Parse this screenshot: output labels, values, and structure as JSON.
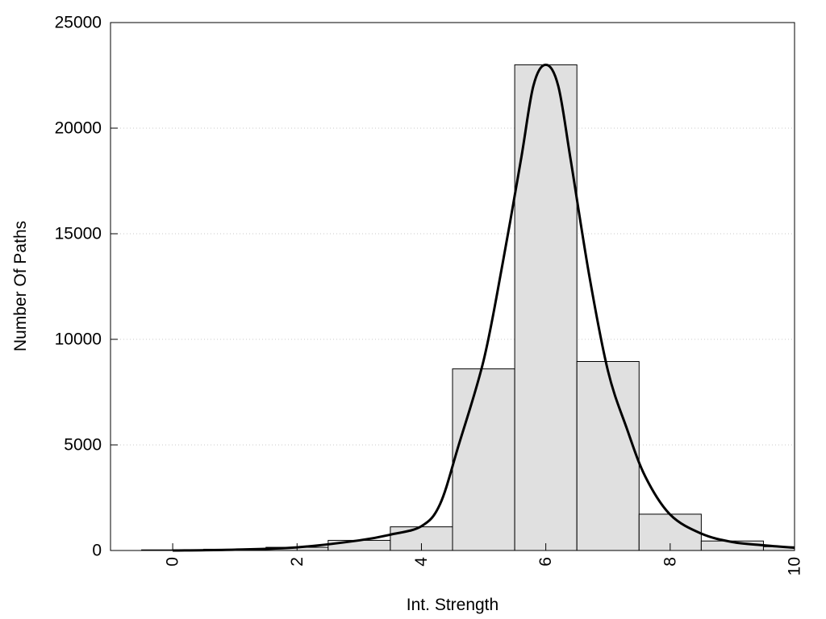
{
  "chart_data": {
    "type": "bar",
    "title": "",
    "xlabel": "Int. Strength",
    "ylabel": "Number Of Paths",
    "xlim": [
      -1,
      10
    ],
    "ylim": [
      0,
      25000
    ],
    "grid": true,
    "legend": "none",
    "x_ticks": [
      0,
      2,
      4,
      6,
      8,
      10
    ],
    "y_ticks": [
      0,
      5000,
      10000,
      15000,
      20000,
      25000
    ],
    "series": [
      {
        "type": "bar",
        "x": [
          0,
          1,
          2,
          3,
          4,
          5,
          6,
          7,
          8,
          9,
          10
        ],
        "values": [
          30,
          60,
          150,
          480,
          1120,
          8600,
          23000,
          8950,
          1720,
          450,
          180
        ]
      },
      {
        "type": "line",
        "x": [
          0,
          1,
          2,
          3,
          3.5,
          4,
          4.3,
          4.6,
          5,
          5.3,
          5.6,
          5.8,
          6,
          6.2,
          6.4,
          6.7,
          7,
          7.3,
          7.6,
          8,
          8.5,
          9,
          9.5,
          10
        ],
        "values": [
          0,
          40,
          150,
          480,
          750,
          1150,
          2200,
          5000,
          9000,
          13500,
          18500,
          22000,
          23000,
          22000,
          18500,
          13000,
          8500,
          5800,
          3500,
          1700,
          800,
          400,
          250,
          130
        ]
      }
    ],
    "colors": {
      "bar_fill": "#e0e0e0",
      "bar_edge": "#000000",
      "line": "#000000",
      "grid": "#c8c8c8"
    }
  }
}
